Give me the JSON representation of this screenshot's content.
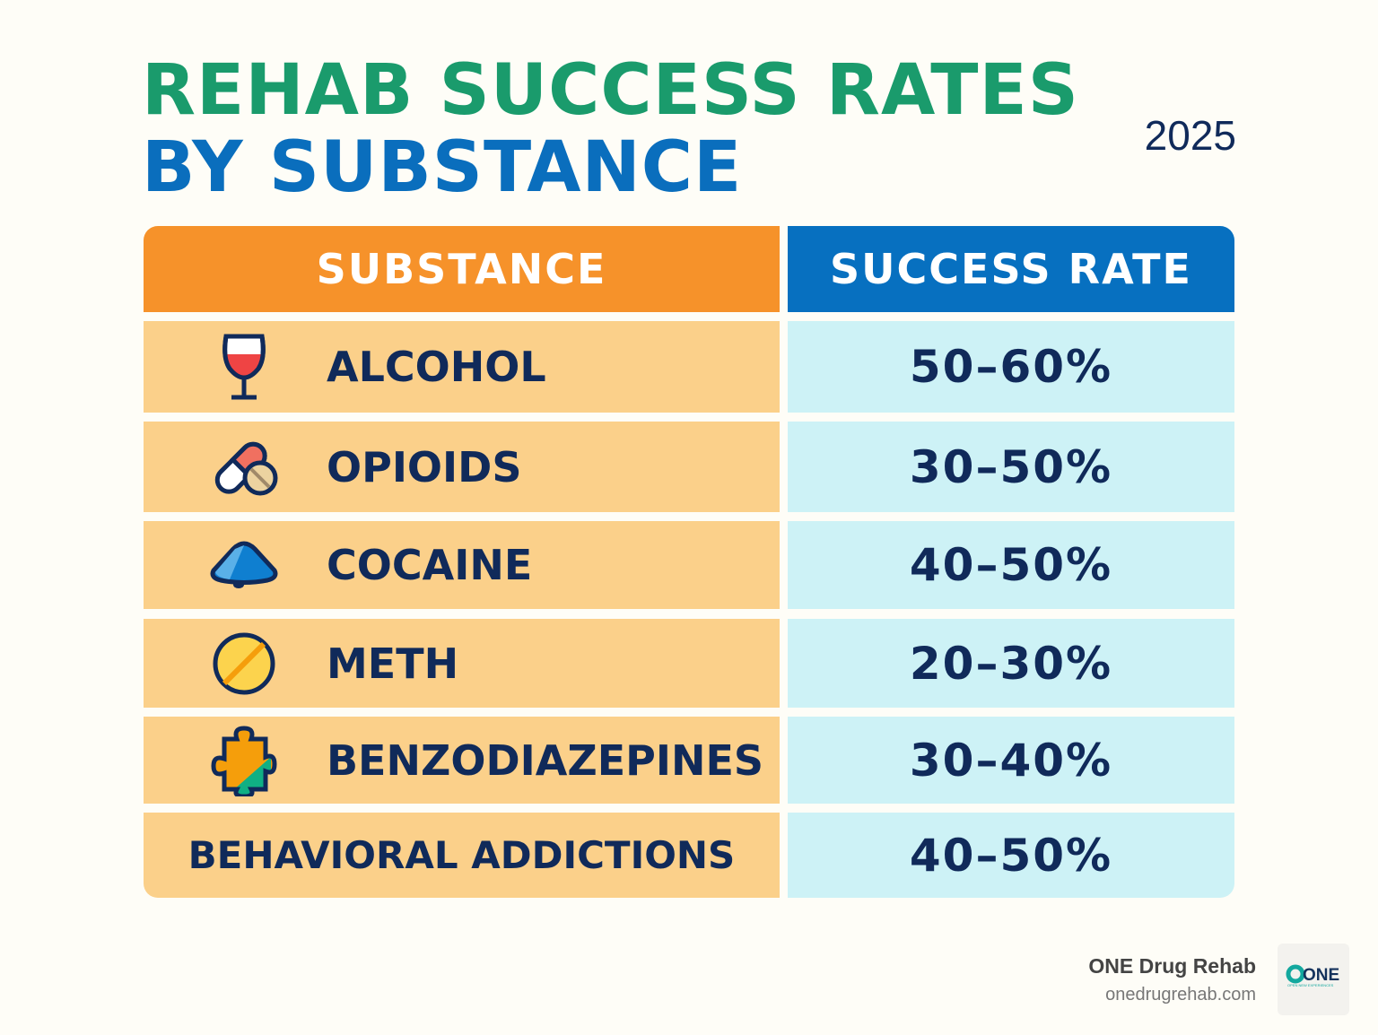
{
  "title": {
    "line1": "REHAB SUCCESS RATES",
    "line2": "BY SUBSTANCE",
    "year": "2025"
  },
  "colors": {
    "title_green": "#1a9b6c",
    "title_blue": "#0a6ebd",
    "header_substance": "#f6922a",
    "header_rate": "#0770c0",
    "row_substance": "#fbd08a",
    "row_rate": "#cdf2f6",
    "text": "#102a5a"
  },
  "chart_data": {
    "type": "table",
    "columns": [
      "SUBSTANCE",
      "SUCCESS RATE"
    ],
    "rows": [
      {
        "substance": "ALCOHOL",
        "rate": "50–60%",
        "icon": "wine-glass-icon"
      },
      {
        "substance": "OPIOIDS",
        "rate": "30–50%",
        "icon": "pills-icon"
      },
      {
        "substance": "COCAINE",
        "rate": "40–50%",
        "icon": "powder-pile-icon"
      },
      {
        "substance": "METH",
        "rate": "20–30%",
        "icon": "tablet-icon"
      },
      {
        "substance": "BENZODIAZEPINES",
        "rate": "30–40%",
        "icon": "puzzle-piece-icon"
      },
      {
        "substance": "BEHAVIORAL ADDICTIONS",
        "rate": "40–50%"
      }
    ]
  },
  "footer": {
    "brand": "ONE Drug Rehab",
    "url": "onedrugrehab.com",
    "logo_text": "ONE",
    "logo_tagline": "OPEN NEW EXPERIENCES"
  }
}
